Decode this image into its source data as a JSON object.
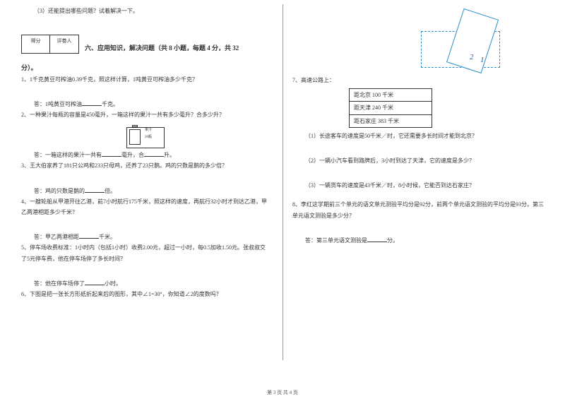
{
  "left": {
    "q3": "（3）还能提出哪些问题？试着解决一下。",
    "score_left": "得分",
    "score_right": "评卷人",
    "section_title": "六、应用知识，解决问题（共 8 小题，每题 4 分，共 32",
    "section_title_end": "分）。",
    "q1": "1、1千克黄豆可榨油0.39千克，照这样计算，1吨黄豆可榨油多少千克？",
    "a1_pre": "答：1吨黄豆可榨油",
    "a1_post": "千克。",
    "q2": "2、一种果汁每瓶的容量是450毫升，一箱这样的果汁一共有多少毫升？合多少升？",
    "juice_label_1": "果汁",
    "juice_label_2": "20瓶",
    "a2_pre": "答：一箱这样的果汁一共有",
    "a2_mid": "毫升，合",
    "a2_post": "升。",
    "q3b": "3、王大伯家养了181只公鸡和233只母鸡，还养了23只鹅。鸡的只数是鹅的多少倍？",
    "a3_pre": "答：鸡的只数是鹅的",
    "a3_post": "倍。",
    "q4": "4、一艘轮船从甲港开往乙港，前7小时航行175千米，照这样的速度，再航行32小时才到达乙港，甲乙两港相距多少千米？",
    "a4_pre": "答：甲乙两港相距",
    "a4_post": "千米。",
    "q5": "5、停车场收费标准：1小时内（包括1小时）收费2.00元，超过一小时，每0.5加收1.50元。张叔叔交了5元停车费，他在停车场停了多长时间？",
    "a5_pre": "答：他在停车场停了",
    "a5_post": "小时。",
    "q6": "6、下图是把一张长方形纸折起来后的图形，其中∠1=30°，你知道∠2的度数吗？"
  },
  "right": {
    "angle1": "1",
    "angle2": "2",
    "q7": "7、高速公路上：",
    "sign1": "距北京 100 千米",
    "sign2": "距天津 240 千米",
    "sign3": "距石家庄 383 千米",
    "q7_1": "（1）长途客车的速度是50千米／时，它还需要多长时间才能到北京？",
    "q7_2": "（2）一辆小汽车看到路牌后，3小时到达了天津，它的速度是多少？",
    "q7_3": "（3）一辆货车的速度是43千米／时，8小时候，它能否到达石家庄？",
    "q8": "8、李红这学期前三个单元的语文单元测验平均分是92分，前两个单元语文测验的平均分是93分。第三单元语文测验是多少分？",
    "a8_pre": "答：第三单元语文测验是",
    "a8_post": "分。"
  },
  "footer": "第 3 页 共 4 页"
}
